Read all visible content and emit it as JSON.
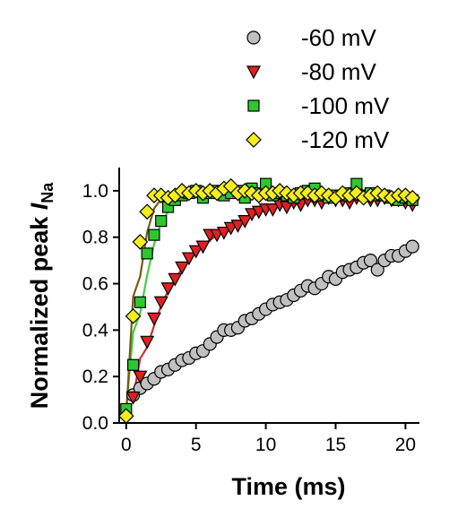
{
  "chart_data": {
    "type": "scatter",
    "xlabel": "Time (ms)",
    "ylabel_main": "Normalized peak ",
    "ylabel_italic": "I",
    "ylabel_sub": "Na",
    "xlim": [
      -0.5,
      21
    ],
    "ylim": [
      0,
      1.1
    ],
    "xticks": [
      0,
      5,
      10,
      15,
      20
    ],
    "yticks": [
      0.0,
      0.2,
      0.4,
      0.6,
      0.8,
      1.0
    ],
    "xtick_labels": [
      "0",
      "5",
      "10",
      "15",
      "20"
    ],
    "ytick_labels": [
      "0.0",
      "0.2",
      "0.4",
      "0.6",
      "0.8",
      "1.0"
    ],
    "legend_position": "top-right",
    "series": [
      {
        "name": "-60 mV",
        "marker": "circle",
        "color": "#c0c0c0",
        "fit_color": "#c8c8c8",
        "x": [
          0.5,
          1.0,
          1.5,
          2.0,
          2.5,
          3.0,
          3.5,
          4.0,
          4.5,
          5.0,
          5.5,
          6.0,
          6.5,
          7.0,
          7.5,
          8.0,
          8.5,
          9.0,
          9.5,
          10.0,
          10.5,
          11.0,
          11.5,
          12.0,
          12.5,
          13.0,
          13.5,
          14.0,
          14.5,
          15.0,
          15.5,
          16.0,
          16.5,
          17.0,
          17.5,
          18.0,
          18.5,
          19.0,
          19.5,
          20.0,
          20.5
        ],
        "y": [
          0.12,
          0.15,
          0.17,
          0.19,
          0.22,
          0.23,
          0.25,
          0.27,
          0.28,
          0.3,
          0.31,
          0.34,
          0.37,
          0.4,
          0.4,
          0.41,
          0.44,
          0.45,
          0.47,
          0.49,
          0.51,
          0.52,
          0.53,
          0.55,
          0.57,
          0.59,
          0.58,
          0.6,
          0.63,
          0.62,
          0.65,
          0.66,
          0.67,
          0.69,
          0.7,
          0.66,
          0.7,
          0.72,
          0.72,
          0.74,
          0.76
        ]
      },
      {
        "name": "-80 mV",
        "marker": "triangle-down",
        "color": "#e02020",
        "fit_color": "#cc3030",
        "x": [
          0.5,
          1.0,
          1.5,
          2.0,
          2.5,
          3.0,
          3.5,
          4.0,
          4.5,
          5.0,
          5.5,
          6.0,
          6.5,
          7.0,
          7.5,
          8.0,
          8.5,
          9.0,
          9.5,
          10.0,
          10.5,
          11.0,
          11.5,
          12.0,
          12.5,
          13.0,
          13.5,
          14.0,
          14.5,
          15.0,
          15.5,
          16.0,
          16.5,
          17.0,
          17.5,
          18.0,
          18.5,
          19.0,
          19.5,
          20.0,
          20.5
        ],
        "y": [
          0.11,
          0.2,
          0.35,
          0.45,
          0.52,
          0.58,
          0.62,
          0.67,
          0.71,
          0.74,
          0.76,
          0.81,
          0.81,
          0.82,
          0.84,
          0.85,
          0.87,
          0.9,
          0.91,
          0.92,
          0.92,
          0.94,
          0.93,
          0.95,
          0.94,
          0.96,
          0.96,
          0.95,
          0.97,
          0.96,
          0.96,
          0.95,
          0.97,
          0.97,
          0.96,
          0.96,
          0.97,
          0.96,
          0.96,
          0.95,
          0.94
        ]
      },
      {
        "name": "-100 mV",
        "marker": "square",
        "color": "#2ec82e",
        "fit_color": "#40d040",
        "x": [
          0.0,
          0.5,
          1.0,
          1.5,
          2.0,
          2.5,
          3.0,
          3.5,
          4.0,
          4.5,
          5.0,
          5.5,
          6.0,
          6.5,
          7.0,
          7.5,
          8.0,
          8.5,
          9.0,
          9.5,
          10.0,
          10.5,
          11.0,
          11.5,
          12.0,
          12.5,
          13.0,
          13.5,
          14.0,
          14.5,
          15.0,
          15.5,
          16.0,
          16.5,
          17.0,
          17.5,
          18.0,
          18.5,
          19.0,
          19.5,
          20.0,
          20.5
        ],
        "y": [
          0.06,
          0.25,
          0.52,
          0.73,
          0.81,
          0.87,
          0.93,
          0.96,
          0.98,
          0.99,
          1.0,
          0.97,
          0.99,
          1.0,
          0.98,
          0.99,
          1.0,
          0.97,
          1.01,
          0.99,
          1.03,
          0.98,
          0.99,
          0.98,
          0.97,
          0.99,
          1.0,
          1.01,
          0.98,
          0.97,
          0.98,
          0.98,
          0.99,
          1.03,
          0.98,
          0.99,
          0.98,
          0.98,
          0.97,
          0.96,
          0.97,
          0.96
        ]
      },
      {
        "name": "-120 mV",
        "marker": "diamond",
        "color": "#f4ee1c",
        "fit_color": "#7a5a10",
        "x": [
          0.0,
          0.5,
          1.0,
          1.5,
          2.0,
          2.5,
          3.0,
          3.5,
          4.0,
          4.5,
          5.0,
          5.5,
          6.0,
          6.5,
          7.0,
          7.5,
          8.0,
          8.5,
          9.0,
          9.5,
          10.0,
          10.5,
          11.0,
          11.5,
          12.0,
          12.5,
          13.0,
          13.5,
          14.0,
          14.5,
          15.0,
          15.5,
          16.0,
          16.5,
          17.0,
          17.5,
          18.0,
          18.5,
          19.0,
          19.5,
          20.0,
          20.5
        ],
        "y": [
          0.03,
          0.46,
          0.78,
          0.91,
          0.98,
          0.98,
          0.97,
          0.98,
          1.0,
          0.99,
          1.0,
          0.99,
          1.0,
          0.99,
          1.01,
          1.02,
          0.99,
          1.0,
          0.99,
          0.98,
          0.99,
          0.99,
          1.0,
          0.99,
          0.98,
          0.99,
          0.99,
          0.98,
          0.99,
          0.98,
          0.97,
          0.99,
          0.98,
          0.99,
          0.97,
          0.98,
          0.99,
          0.98,
          0.97,
          0.98,
          0.98,
          0.97
        ]
      }
    ]
  }
}
